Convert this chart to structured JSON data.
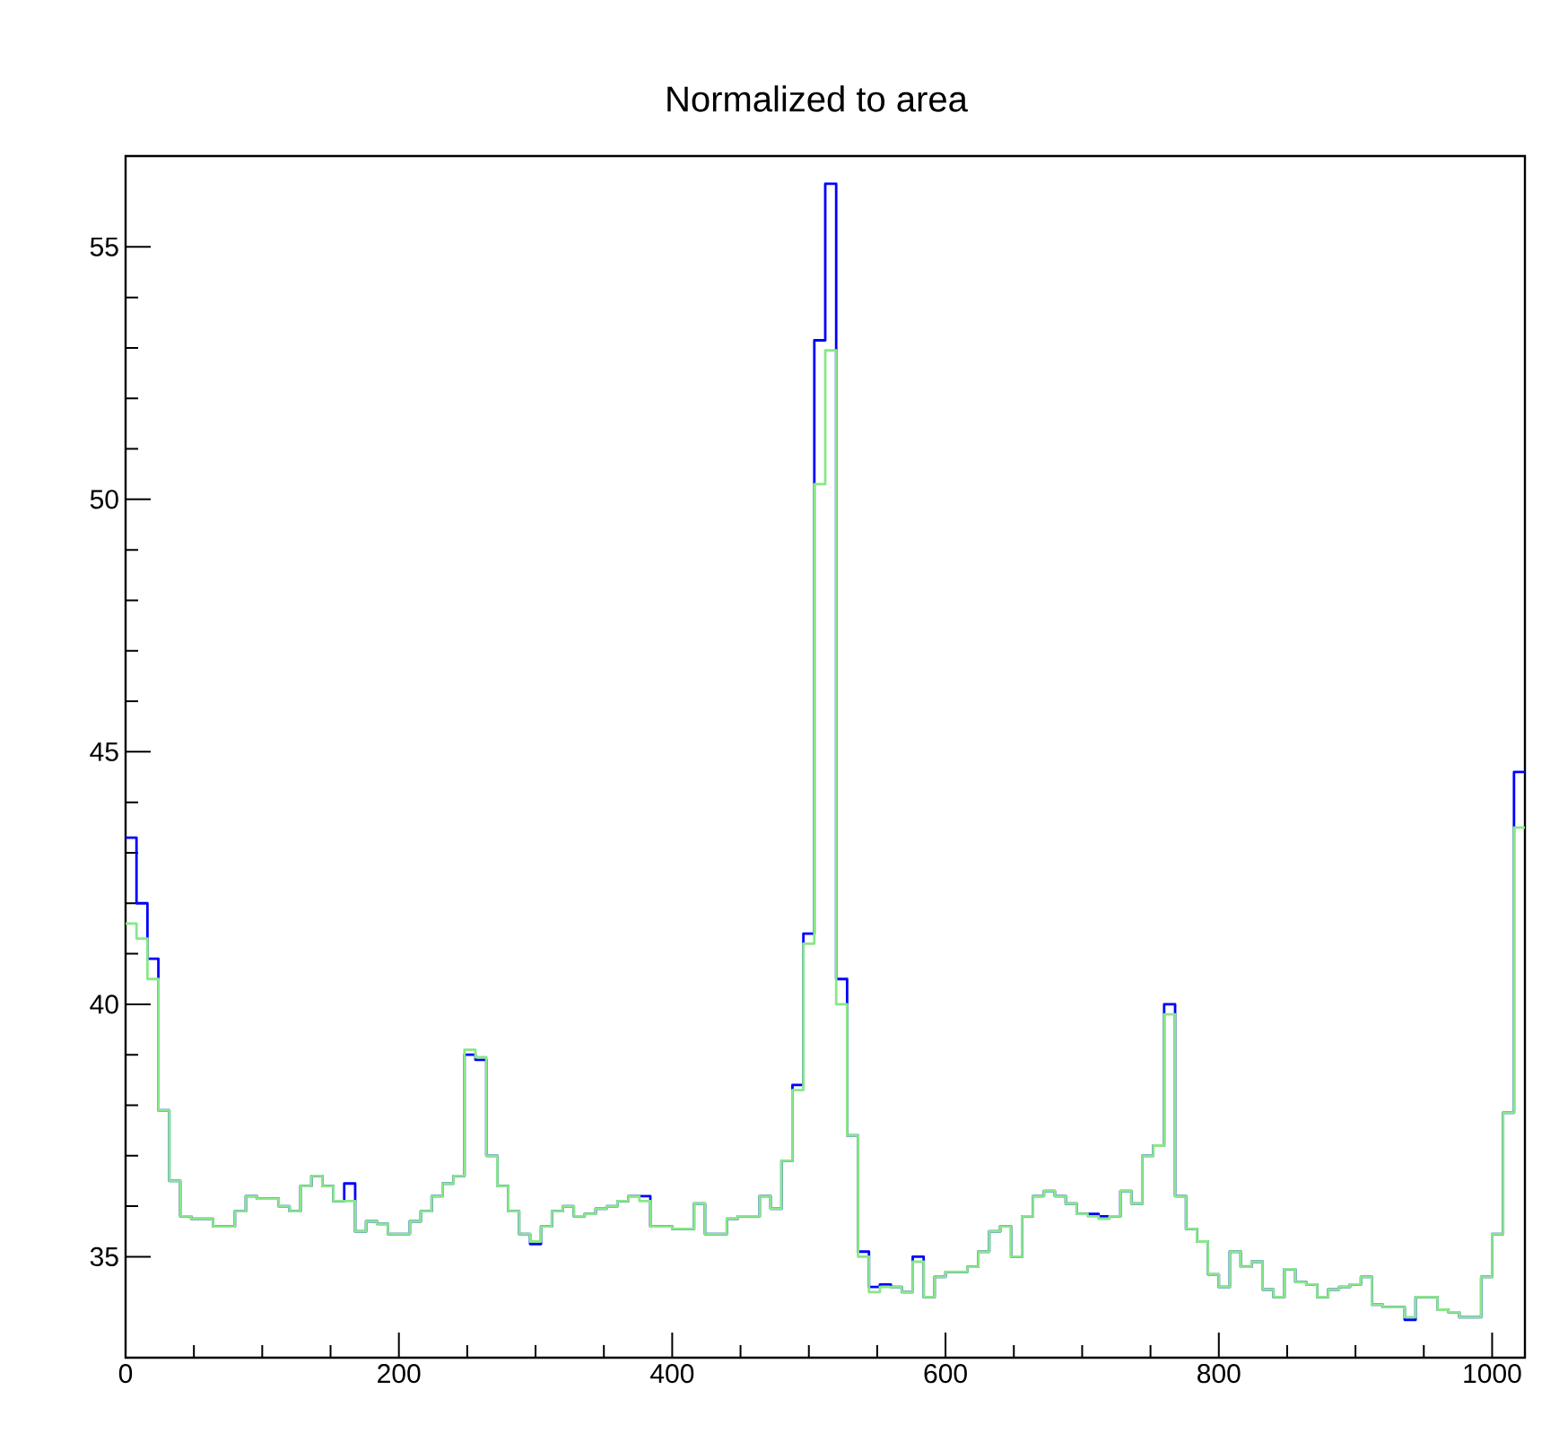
{
  "chart_data": {
    "type": "histogram",
    "title": "Normalized to area",
    "bins": [
      0,
      8,
      16,
      24,
      32,
      40,
      48,
      56,
      64,
      72,
      80,
      88,
      96,
      104,
      112,
      120,
      128,
      136,
      144,
      152,
      160,
      168,
      176,
      184,
      192,
      200,
      208,
      216,
      224,
      232,
      240,
      248,
      256,
      264,
      272,
      280,
      288,
      296,
      304,
      312,
      320,
      328,
      336,
      344,
      352,
      360,
      368,
      376,
      384,
      392,
      400,
      408,
      416,
      424,
      432,
      440,
      448,
      456,
      464,
      472,
      480,
      488,
      496,
      504,
      512,
      520,
      528,
      536,
      544,
      552,
      560,
      568,
      576,
      584,
      592,
      600,
      608,
      616,
      624,
      632,
      640,
      648,
      656,
      664,
      672,
      680,
      688,
      696,
      704,
      712,
      720,
      728,
      736,
      744,
      752,
      760,
      768,
      776,
      784,
      792,
      800,
      808,
      816,
      824,
      832,
      840,
      848,
      856,
      864,
      872,
      880,
      888,
      896,
      904,
      912,
      920,
      928,
      936,
      944,
      952,
      960,
      968,
      976,
      984,
      992,
      1000,
      1008,
      1016,
      1024
    ],
    "series": [
      {
        "color": "#0000ff",
        "values": [
          43.3,
          42.0,
          40.9,
          37.9,
          36.5,
          35.8,
          35.75,
          35.75,
          35.6,
          35.6,
          35.9,
          36.2,
          36.15,
          36.15,
          36.0,
          35.9,
          36.4,
          36.6,
          36.4,
          36.1,
          36.45,
          35.5,
          35.7,
          35.65,
          35.45,
          35.45,
          35.7,
          35.9,
          36.2,
          36.45,
          36.6,
          39.0,
          38.9,
          37.0,
          36.4,
          35.9,
          35.45,
          35.25,
          35.6,
          35.9,
          36.0,
          35.8,
          35.85,
          35.95,
          36.0,
          36.1,
          36.2,
          36.2,
          35.6,
          35.6,
          35.55,
          35.55,
          36.05,
          35.45,
          35.45,
          35.75,
          35.8,
          35.8,
          36.2,
          35.95,
          36.9,
          38.4,
          41.4,
          53.15,
          56.25,
          40.5,
          37.4,
          35.1,
          34.4,
          34.45,
          34.4,
          34.3,
          35.0,
          34.2,
          34.6,
          34.7,
          34.7,
          34.8,
          35.1,
          35.5,
          35.6,
          35.0,
          35.8,
          36.2,
          36.3,
          36.2,
          36.05,
          35.85,
          35.85,
          35.8,
          35.8,
          36.3,
          36.05,
          37.0,
          37.2,
          40.0,
          36.2,
          35.55,
          35.3,
          34.65,
          34.4,
          35.1,
          34.8,
          34.9,
          34.35,
          34.2,
          34.75,
          34.5,
          34.45,
          34.2,
          34.35,
          34.4,
          34.45,
          34.6,
          34.05,
          34.0,
          34.0,
          33.75,
          34.2,
          34.2,
          33.95,
          33.9,
          33.8,
          33.8,
          34.6,
          35.45,
          37.85,
          44.6
        ]
      },
      {
        "color": "#88e888",
        "values": [
          41.6,
          41.3,
          40.5,
          37.9,
          36.5,
          35.8,
          35.75,
          35.75,
          35.6,
          35.6,
          35.9,
          36.2,
          36.15,
          36.15,
          36.0,
          35.9,
          36.4,
          36.6,
          36.4,
          36.1,
          36.1,
          35.5,
          35.7,
          35.65,
          35.45,
          35.45,
          35.7,
          35.9,
          36.2,
          36.45,
          36.6,
          39.1,
          38.95,
          37.0,
          36.4,
          35.9,
          35.45,
          35.3,
          35.6,
          35.9,
          36.0,
          35.8,
          35.85,
          35.95,
          36.0,
          36.1,
          36.2,
          36.1,
          35.6,
          35.6,
          35.55,
          35.55,
          36.05,
          35.45,
          35.45,
          35.75,
          35.8,
          35.8,
          36.2,
          35.95,
          36.9,
          38.3,
          41.2,
          50.3,
          52.95,
          40.0,
          37.4,
          35.0,
          34.3,
          34.4,
          34.4,
          34.3,
          34.9,
          34.2,
          34.6,
          34.7,
          34.7,
          34.8,
          35.1,
          35.5,
          35.6,
          35.0,
          35.8,
          36.2,
          36.3,
          36.2,
          36.05,
          35.85,
          35.8,
          35.75,
          35.8,
          36.3,
          36.05,
          37.0,
          37.2,
          39.8,
          36.2,
          35.55,
          35.3,
          34.65,
          34.4,
          35.1,
          34.8,
          34.9,
          34.35,
          34.2,
          34.75,
          34.5,
          34.45,
          34.2,
          34.35,
          34.4,
          34.45,
          34.6,
          34.05,
          34.0,
          34.0,
          33.8,
          34.2,
          34.2,
          33.95,
          33.9,
          33.8,
          33.8,
          34.6,
          35.45,
          37.85,
          43.5
        ]
      }
    ],
    "xlim": [
      0,
      1024
    ],
    "xticks": [
      0,
      200,
      400,
      600,
      800,
      1000
    ],
    "ylim": [
      33,
      56.8
    ],
    "yticks": [
      35,
      40,
      45,
      50,
      55
    ]
  }
}
